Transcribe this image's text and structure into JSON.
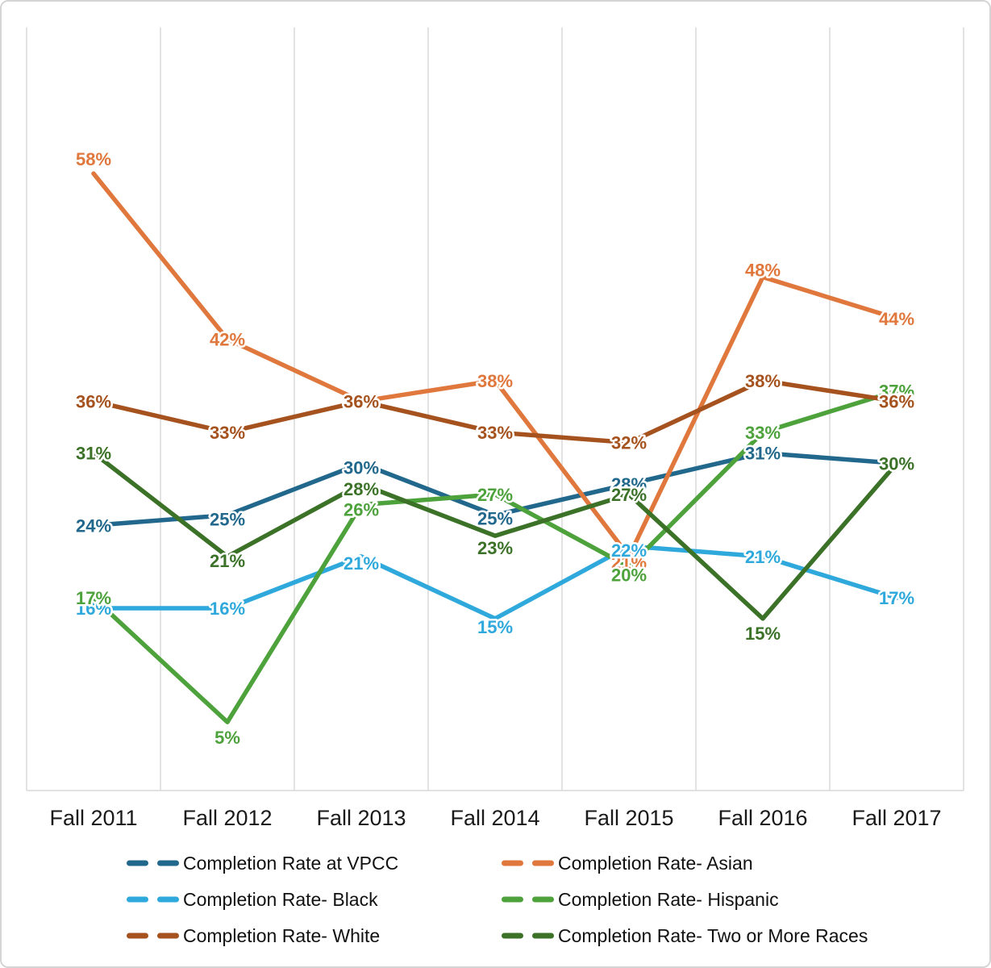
{
  "chart_data": {
    "type": "line",
    "title": "",
    "xlabel": "",
    "ylabel": "",
    "value_suffix": "%",
    "ylim": [
      0,
      72
    ],
    "grid": "vertical-only",
    "legend_position": "bottom",
    "legend_columns": 2,
    "categories": [
      "Fall 2011",
      "Fall 2012",
      "Fall 2013",
      "Fall 2014",
      "Fall 2015",
      "Fall 2016",
      "Fall 2017"
    ],
    "series": [
      {
        "name": "Completion Rate at VPCC",
        "color": "#21688C",
        "values": [
          24,
          25,
          30,
          25,
          28,
          31,
          30
        ]
      },
      {
        "name": "Completion Rate- Asian",
        "color": "#E0773C",
        "values": [
          58,
          42,
          36,
          38,
          21,
          48,
          44
        ]
      },
      {
        "name": "Completion Rate- Black",
        "color": "#2FA9DC",
        "values": [
          16,
          16,
          21,
          15,
          22,
          21,
          17
        ]
      },
      {
        "name": "Completion Rate- Hispanic",
        "color": "#4DA23C",
        "values": [
          17,
          5,
          26,
          27,
          20,
          33,
          37
        ]
      },
      {
        "name": "Completion Rate- White",
        "color": "#A5521E",
        "values": [
          36,
          33,
          36,
          33,
          32,
          38,
          36
        ]
      },
      {
        "name": "Completion Rate- Two or More Races",
        "color": "#3B7228",
        "values": [
          31,
          21,
          28,
          23,
          27,
          15,
          30
        ]
      }
    ]
  },
  "colors": {
    "background": "#FFFFFF",
    "frame_border": "#D5D5D5",
    "gridline": "#D9D9D9",
    "axis_text": "#1A1A1A",
    "legend_text": "#111111"
  }
}
